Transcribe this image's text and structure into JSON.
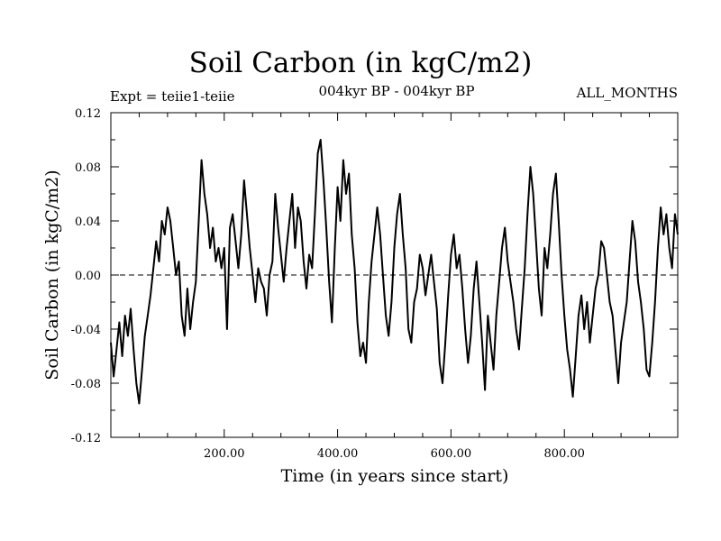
{
  "chart_data": {
    "type": "line",
    "title": "Soil Carbon (in kgC/m2)",
    "subtitle": "004kyr BP - 004kyr BP",
    "left_label": "Expt = teiie1-teiie",
    "right_label": "ALL_MONTHS",
    "xlabel": "Time (in years since start)",
    "ylabel": "Soil Carbon (in kgC/m2)",
    "xlim": [
      0,
      1000
    ],
    "ylim": [
      -0.12,
      0.12
    ],
    "xticks": [
      200,
      400,
      600,
      800
    ],
    "xtick_labels": [
      "200.00",
      "400.00",
      "600.00",
      "800.00"
    ],
    "yticks": [
      -0.12,
      -0.08,
      -0.04,
      0.0,
      0.04,
      0.08,
      0.12
    ],
    "ytick_labels": [
      "-0.12",
      "-0.08",
      "-0.04",
      "0.00",
      "0.04",
      "0.08",
      "0.12"
    ],
    "reference_line": 0.0,
    "series": [
      {
        "x": [
          0,
          5,
          10,
          15,
          20,
          25,
          30,
          35,
          40,
          45,
          50,
          55,
          60,
          65,
          70,
          75,
          80,
          85,
          90,
          95,
          100,
          105,
          110,
          115,
          120,
          125,
          130,
          135,
          140,
          145,
          150,
          155,
          160,
          165,
          170,
          175,
          180,
          185,
          190,
          195,
          200,
          205,
          210,
          215,
          220,
          225,
          230,
          235,
          240,
          245,
          250,
          255,
          260,
          265,
          270,
          275,
          280,
          285,
          290,
          295,
          300,
          305,
          310,
          315,
          320,
          325,
          330,
          335,
          340,
          345,
          350,
          355,
          360,
          365,
          370,
          375,
          380,
          385,
          390,
          395,
          400,
          405,
          410,
          415,
          420,
          425,
          430,
          435,
          440,
          445,
          450,
          455,
          460,
          465,
          470,
          475,
          480,
          485,
          490,
          495,
          500,
          505,
          510,
          515,
          520,
          525,
          530,
          535,
          540,
          545,
          550,
          555,
          560,
          565,
          570,
          575,
          580,
          585,
          590,
          595,
          600,
          605,
          610,
          615,
          620,
          625,
          630,
          635,
          640,
          645,
          650,
          655,
          660,
          665,
          670,
          675,
          680,
          685,
          690,
          695,
          700,
          705,
          710,
          715,
          720,
          725,
          730,
          735,
          740,
          745,
          750,
          755,
          760,
          765,
          770,
          775,
          780,
          785,
          790,
          795,
          800,
          805,
          810,
          815,
          820,
          825,
          830,
          835,
          840,
          845,
          850,
          855,
          860,
          865,
          870,
          875,
          880,
          885,
          890,
          895,
          900,
          905,
          910,
          915,
          920,
          925,
          930,
          935,
          940,
          945,
          950,
          955,
          960,
          965,
          970,
          975,
          980,
          985,
          990,
          995,
          1000
        ],
        "values": [
          -0.05,
          -0.075,
          -0.055,
          -0.035,
          -0.06,
          -0.03,
          -0.045,
          -0.025,
          -0.055,
          -0.08,
          -0.095,
          -0.07,
          -0.045,
          -0.03,
          -0.015,
          0.005,
          0.025,
          0.01,
          0.04,
          0.03,
          0.05,
          0.04,
          0.02,
          0.0,
          0.01,
          -0.03,
          -0.045,
          -0.01,
          -0.04,
          -0.02,
          -0.005,
          0.04,
          0.085,
          0.06,
          0.045,
          0.02,
          0.035,
          0.01,
          0.02,
          0.005,
          0.02,
          -0.04,
          0.035,
          0.045,
          0.025,
          0.005,
          0.03,
          0.07,
          0.045,
          0.02,
          0.0,
          -0.02,
          0.005,
          -0.005,
          -0.01,
          -0.03,
          0.0,
          0.01,
          0.06,
          0.035,
          0.015,
          -0.005,
          0.02,
          0.04,
          0.06,
          0.02,
          0.05,
          0.04,
          0.01,
          -0.01,
          0.015,
          0.005,
          0.045,
          0.09,
          0.1,
          0.07,
          0.035,
          -0.005,
          -0.035,
          0.02,
          0.065,
          0.04,
          0.085,
          0.06,
          0.075,
          0.03,
          0.005,
          -0.035,
          -0.06,
          -0.05,
          -0.065,
          -0.02,
          0.01,
          0.03,
          0.05,
          0.03,
          0.0,
          -0.03,
          -0.045,
          -0.02,
          0.02,
          0.045,
          0.06,
          0.03,
          0.005,
          -0.04,
          -0.05,
          -0.02,
          -0.01,
          0.015,
          0.005,
          -0.015,
          0.0,
          0.015,
          -0.005,
          -0.025,
          -0.065,
          -0.08,
          -0.05,
          -0.015,
          0.015,
          0.03,
          0.005,
          0.015,
          -0.01,
          -0.04,
          -0.065,
          -0.045,
          -0.01,
          0.01,
          -0.02,
          -0.05,
          -0.085,
          -0.03,
          -0.05,
          -0.07,
          -0.03,
          -0.005,
          0.02,
          0.035,
          0.01,
          -0.005,
          -0.02,
          -0.04,
          -0.055,
          -0.025,
          0.005,
          0.045,
          0.08,
          0.06,
          0.025,
          -0.01,
          -0.03,
          0.02,
          0.005,
          0.03,
          0.06,
          0.075,
          0.04,
          0.0,
          -0.03,
          -0.055,
          -0.07,
          -0.09,
          -0.06,
          -0.03,
          -0.015,
          -0.04,
          -0.02,
          -0.05,
          -0.03,
          -0.01,
          0.0,
          0.025,
          0.02,
          0.0,
          -0.02,
          -0.03,
          -0.055,
          -0.08,
          -0.05,
          -0.035,
          -0.02,
          0.01,
          0.04,
          0.025,
          -0.005,
          -0.02,
          -0.04,
          -0.07,
          -0.075,
          -0.05,
          -0.02,
          0.02,
          0.05,
          0.03,
          0.045,
          0.02,
          0.005,
          0.045,
          0.03
        ]
      }
    ]
  }
}
